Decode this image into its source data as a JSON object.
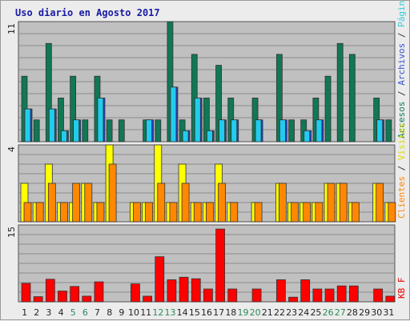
{
  "chart_data": {
    "type": "bar",
    "title": "Uso diario en Agosto 2017",
    "categories": [
      "1",
      "2",
      "3",
      "4",
      "5",
      "6",
      "7",
      "8",
      "9",
      "10",
      "11",
      "12",
      "13",
      "14",
      "15",
      "16",
      "17",
      "18",
      "19",
      "20",
      "21",
      "22",
      "23",
      "24",
      "25",
      "26",
      "27",
      "28",
      "29",
      "30",
      "31"
    ],
    "weekend_days": [
      "5",
      "6",
      "12",
      "13",
      "19",
      "20",
      "26",
      "27"
    ],
    "panels": [
      {
        "id": "top",
        "ymax_label": "11",
        "ylim": [
          0,
          11
        ],
        "labels": [
          {
            "text": "Accesos",
            "color": "#117755"
          },
          {
            "text": " / ",
            "color": "#333333"
          },
          {
            "text": "Archivos",
            "color": "#3355cc"
          },
          {
            "text": " / ",
            "color": "#333333"
          },
          {
            "text": "Páginas",
            "color": "#33ccdd"
          }
        ],
        "series": [
          {
            "name": "Accesos",
            "color": "#117755",
            "values": [
              6,
              2,
              9,
              4,
              6,
              2,
              6,
              2,
              2,
              0,
              2,
              2,
              11,
              2,
              8,
              4,
              7,
              4,
              0,
              4,
              0,
              8,
              2,
              2,
              4,
              6,
              9,
              8,
              0,
              4,
              2
            ]
          },
          {
            "name": "Archivos",
            "color": "#2244cc",
            "values": [
              3,
              0,
              3,
              1,
              2,
              0,
              4,
              0,
              0,
              0,
              2,
              0,
              5,
              1,
              4,
              1,
              2,
              2,
              0,
              2,
              0,
              2,
              0,
              1,
              2,
              0,
              0,
              0,
              0,
              2,
              0
            ]
          },
          {
            "name": "Páginas",
            "color": "#22ccee",
            "values": [
              3,
              0,
              3,
              1,
              2,
              0,
              4,
              0,
              0,
              0,
              2,
              0,
              5,
              1,
              4,
              1,
              2,
              2,
              0,
              2,
              0,
              2,
              0,
              1,
              2,
              0,
              0,
              0,
              0,
              2,
              0
            ]
          }
        ]
      },
      {
        "id": "middle",
        "ymax_label": "4",
        "ylim": [
          0,
          4
        ],
        "labels": [
          {
            "text": "Clientes",
            "color": "#ff8800"
          },
          {
            "text": " / ",
            "color": "#333333"
          },
          {
            "text": "Visitas",
            "color": "#dddd00"
          }
        ],
        "series": [
          {
            "name": "Visitas",
            "color": "#ffff00",
            "values": [
              2,
              1,
              3,
              1,
              1,
              2,
              1,
              4,
              0,
              1,
              1,
              4,
              1,
              3,
              1,
              1,
              3,
              1,
              0,
              1,
              0,
              2,
              1,
              1,
              1,
              2,
              2,
              1,
              0,
              2,
              1
            ]
          },
          {
            "name": "Clientes",
            "color": "#ff8800",
            "values": [
              1,
              1,
              2,
              1,
              2,
              2,
              1,
              3,
              0,
              1,
              1,
              2,
              1,
              2,
              1,
              1,
              2,
              1,
              0,
              1,
              0,
              2,
              1,
              1,
              1,
              2,
              2,
              1,
              0,
              2,
              1
            ]
          }
        ]
      },
      {
        "id": "bottom",
        "ymax_label": "15",
        "ylim": [
          0,
          15
        ],
        "labels": [
          {
            "text": "KB F",
            "color": "#ee0000"
          }
        ],
        "series": [
          {
            "name": "KB F",
            "color": "#ff0000",
            "values": [
              3.6,
              1,
              4.4,
              2.1,
              3,
              1.1,
              3.9,
              0,
              0,
              3.5,
              1.1,
              8.8,
              4.3,
              4.8,
              4.5,
              2.5,
              14.2,
              2.5,
              0,
              2.5,
              0,
              4.3,
              0.9,
              4.3,
              2.5,
              2.5,
              3.1,
              3.1,
              0,
              2.5,
              1.1
            ]
          }
        ]
      }
    ]
  },
  "colors": {
    "plot_bg": "#c0c0c0",
    "grid": "#8c8c8c",
    "tick_weekday": "#222222",
    "tick_weekend": "#2e8b57"
  }
}
